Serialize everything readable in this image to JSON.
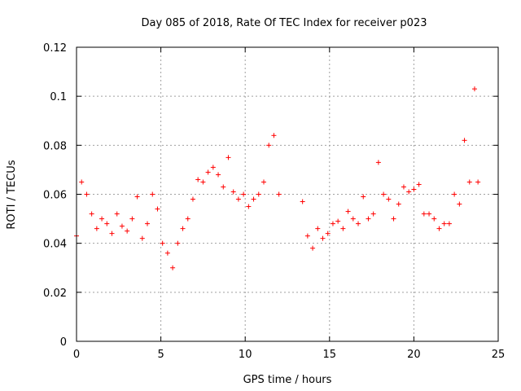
{
  "chart_data": {
    "type": "scatter",
    "title": "Day 085 of 2018, Rate Of TEC Index for receiver p023",
    "xlabel": "GPS time / hours",
    "ylabel": "ROTI / TECUs",
    "xlim": [
      0,
      25
    ],
    "ylim": [
      0,
      0.12
    ],
    "x_ticks": [
      0,
      5,
      10,
      15,
      20,
      25
    ],
    "y_ticks": [
      0,
      0.02,
      0.04,
      0.06,
      0.08,
      0.1,
      0.12
    ],
    "x_tick_labels": [
      "0",
      "5",
      "10",
      "15",
      "20",
      "25"
    ],
    "y_tick_labels": [
      "0",
      "0.02",
      "0.04",
      "0.06",
      "0.08",
      "0.1",
      "0.12"
    ],
    "grid": true,
    "marker": "plus",
    "color": "#ff0000",
    "data_gap_hours": [
      12.3,
      13.3
    ],
    "series": [
      {
        "x": [
          0.0,
          0.3,
          0.6,
          0.9,
          1.2,
          1.5,
          1.8,
          2.1,
          2.4,
          2.7,
          3.0,
          3.3,
          3.6,
          3.9,
          4.2,
          4.5,
          4.8,
          5.1,
          5.4,
          5.7,
          6.0,
          6.3,
          6.6,
          6.9,
          7.2,
          7.5,
          7.8,
          8.1,
          8.4,
          8.7,
          9.0,
          9.3,
          9.6,
          9.9,
          10.2,
          10.5,
          10.8,
          11.1,
          11.4,
          11.7,
          12.0,
          13.4,
          13.7,
          14.0,
          14.3,
          14.6,
          14.9,
          15.2,
          15.5,
          15.8,
          16.1,
          16.4,
          16.7,
          17.0,
          17.3,
          17.6,
          17.9,
          18.2,
          18.5,
          18.8,
          19.1,
          19.4,
          19.7,
          20.0,
          20.3,
          20.6,
          20.9,
          21.2,
          21.5,
          21.8,
          22.1,
          22.4,
          22.7,
          23.0,
          23.3,
          23.6,
          23.8
        ],
        "y": [
          0.043,
          0.065,
          0.06,
          0.052,
          0.046,
          0.05,
          0.048,
          0.044,
          0.052,
          0.047,
          0.045,
          0.05,
          0.059,
          0.042,
          0.048,
          0.06,
          0.054,
          0.04,
          0.036,
          0.03,
          0.04,
          0.046,
          0.05,
          0.058,
          0.066,
          0.065,
          0.069,
          0.071,
          0.068,
          0.063,
          0.075,
          0.061,
          0.058,
          0.06,
          0.055,
          0.058,
          0.06,
          0.065,
          0.08,
          0.084,
          0.06,
          0.057,
          0.043,
          0.038,
          0.046,
          0.042,
          0.044,
          0.048,
          0.049,
          0.046,
          0.053,
          0.05,
          0.048,
          0.059,
          0.05,
          0.052,
          0.073,
          0.06,
          0.058,
          0.05,
          0.056,
          0.063,
          0.061,
          0.062,
          0.064,
          0.052,
          0.052,
          0.05,
          0.046,
          0.048,
          0.048,
          0.06,
          0.056,
          0.082,
          0.065,
          0.103,
          0.065
        ]
      }
    ]
  }
}
